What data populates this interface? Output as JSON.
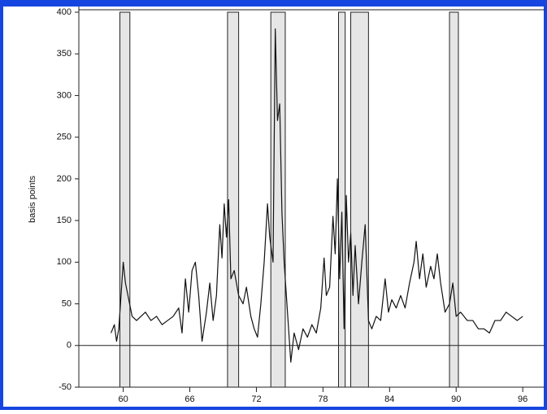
{
  "chart_data": {
    "type": "line",
    "y_label": "basis points",
    "x": [
      58.9,
      59.2,
      59.4,
      59.6,
      59.8,
      60.0,
      60.2,
      60.5,
      60.8,
      61.2,
      61.6,
      62.0,
      62.5,
      63.0,
      63.5,
      64.0,
      64.5,
      65.0,
      65.3,
      65.6,
      65.9,
      66.2,
      66.5,
      66.8,
      67.1,
      67.5,
      67.8,
      68.1,
      68.4,
      68.7,
      68.9,
      69.1,
      69.3,
      69.5,
      69.7,
      70.0,
      70.4,
      70.8,
      71.1,
      71.5,
      71.8,
      72.1,
      72.4,
      72.7,
      73.0,
      73.2,
      73.5,
      73.7,
      73.9,
      74.1,
      74.3,
      74.5,
      74.8,
      75.1,
      75.4,
      75.8,
      76.2,
      76.6,
      77.0,
      77.4,
      77.8,
      78.1,
      78.3,
      78.6,
      78.9,
      79.1,
      79.3,
      79.5,
      79.7,
      79.9,
      80.1,
      80.3,
      80.5,
      80.7,
      80.9,
      81.2,
      81.5,
      81.8,
      82.1,
      82.4,
      82.8,
      83.2,
      83.6,
      83.9,
      84.2,
      84.6,
      85.0,
      85.4,
      85.8,
      86.2,
      86.4,
      86.7,
      87.0,
      87.3,
      87.7,
      88.0,
      88.3,
      88.6,
      89.0,
      89.4,
      89.7,
      90.0,
      90.4,
      91.0,
      91.5,
      92.0,
      92.5,
      93.0,
      93.5,
      94.0,
      94.5,
      95.0,
      95.5,
      96.0
    ],
    "series": [
      {
        "color": "#111111",
        "values": [
          15,
          25,
          5,
          20,
          60,
          100,
          75,
          55,
          35,
          30,
          35,
          40,
          30,
          35,
          25,
          30,
          35,
          45,
          15,
          80,
          40,
          90,
          100,
          60,
          5,
          40,
          75,
          30,
          60,
          145,
          105,
          170,
          130,
          175,
          80,
          90,
          60,
          50,
          70,
          35,
          20,
          10,
          50,
          100,
          170,
          130,
          100,
          380,
          270,
          290,
          160,
          100,
          40,
          -20,
          15,
          -5,
          20,
          10,
          25,
          15,
          45,
          105,
          60,
          70,
          155,
          110,
          200,
          80,
          160,
          20,
          180,
          100,
          135,
          60,
          120,
          50,
          100,
          145,
          30,
          20,
          35,
          30,
          80,
          40,
          55,
          45,
          60,
          45,
          75,
          100,
          125,
          80,
          110,
          70,
          95,
          80,
          110,
          75,
          40,
          50,
          75,
          35,
          40,
          30,
          30,
          20,
          20,
          15,
          30,
          30,
          40,
          35,
          30,
          35
        ]
      }
    ],
    "shaded_periods": [
      [
        59.7,
        60.6
      ],
      [
        69.4,
        70.4
      ],
      [
        73.3,
        74.6
      ],
      [
        79.4,
        80.0
      ],
      [
        80.5,
        82.1
      ],
      [
        89.4,
        90.2
      ]
    ],
    "shade_color": "#e6e6e6",
    "zero_line": true,
    "xlim": [
      56,
      97.6
    ],
    "ylim": [
      -50,
      400
    ],
    "xticks": [
      60,
      66,
      72,
      78,
      84,
      90,
      96
    ],
    "yticks": [
      400,
      350,
      300,
      250,
      200,
      150,
      100,
      50,
      0,
      -50
    ]
  }
}
